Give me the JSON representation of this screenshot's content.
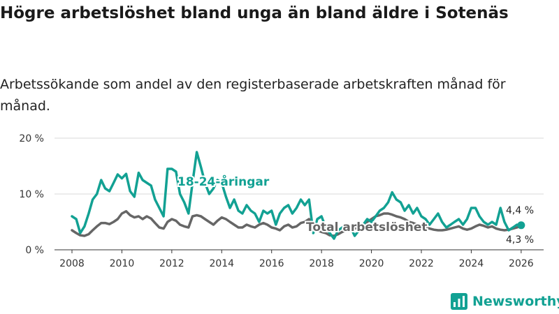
{
  "header": {
    "title": "Högre arbetslöshet bland unga än bland äldre i Sotenäs",
    "subtitle": "Arbetssökande som andel av den registerbaserade arbetskraften månad för månad."
  },
  "colors": {
    "youth": "#12a193",
    "total": "#666666",
    "grid": "#d9d9d9",
    "axis": "#333333"
  },
  "brand": {
    "name": "Newsworthy",
    "icon": "bar-chart-icon"
  },
  "chart_data": {
    "type": "line",
    "title": "Högre arbetslöshet bland unga än bland äldre i Sotenäs",
    "subtitle": "Arbetssökande som andel av den registerbaserade arbetskraften månad för månad.",
    "xlabel": "",
    "ylabel": "",
    "xlim": [
      2007.3,
      2026.9
    ],
    "ylim": [
      0,
      20
    ],
    "grid": true,
    "y_ticks": [
      0,
      10,
      20
    ],
    "y_tick_labels": [
      "0 %",
      "10 %",
      "20 %"
    ],
    "x_ticks": [
      2008,
      2010,
      2012,
      2014,
      2016,
      2018,
      2020,
      2022,
      2024,
      2026
    ],
    "x_tick_labels": [
      "2008",
      "2010",
      "2012",
      "2014",
      "2016",
      "2018",
      "2020",
      "2022",
      "2024",
      "2026"
    ],
    "series": [
      {
        "name": "18-24-åringar",
        "label": "18-24-åringar",
        "end_label": "4,4 %",
        "color": "#12a193",
        "x": [
          2008.0,
          2008.17,
          2008.33,
          2008.5,
          2008.67,
          2008.83,
          2009.0,
          2009.17,
          2009.33,
          2009.5,
          2009.67,
          2009.83,
          2010.0,
          2010.17,
          2010.33,
          2010.5,
          2010.67,
          2010.83,
          2011.0,
          2011.17,
          2011.33,
          2011.5,
          2011.67,
          2011.83,
          2012.0,
          2012.17,
          2012.33,
          2012.5,
          2012.67,
          2012.83,
          2013.0,
          2013.17,
          2013.33,
          2013.5,
          2013.67,
          2013.83,
          2014.0,
          2014.17,
          2014.33,
          2014.5,
          2014.67,
          2014.83,
          2015.0,
          2015.17,
          2015.33,
          2015.5,
          2015.67,
          2015.83,
          2016.0,
          2016.17,
          2016.33,
          2016.5,
          2016.67,
          2016.83,
          2017.0,
          2017.17,
          2017.33,
          2017.5,
          2017.67,
          2017.83,
          2018.0,
          2018.17,
          2018.33,
          2018.5,
          2018.67,
          2018.83,
          2019.0,
          2019.17,
          2019.33,
          2019.5,
          2019.67,
          2019.83,
          2020.0,
          2020.17,
          2020.33,
          2020.5,
          2020.67,
          2020.83,
          2021.0,
          2021.17,
          2021.33,
          2021.5,
          2021.67,
          2021.83,
          2022.0,
          2022.17,
          2022.33,
          2022.5,
          2022.67,
          2022.83,
          2023.0,
          2023.17,
          2023.33,
          2023.5,
          2023.67,
          2023.83,
          2024.0,
          2024.17,
          2024.33,
          2024.5,
          2024.67,
          2024.83,
          2025.0,
          2025.17,
          2025.33,
          2025.5,
          2025.67,
          2025.83,
          2026.0
        ],
        "values": [
          6.0,
          5.5,
          3.0,
          4.2,
          6.5,
          9.0,
          10.0,
          12.5,
          11.0,
          10.5,
          12.0,
          13.5,
          12.8,
          13.6,
          10.5,
          9.5,
          13.8,
          12.5,
          12.0,
          11.5,
          9.0,
          7.5,
          6.0,
          14.5,
          14.5,
          14.0,
          10.0,
          8.5,
          6.5,
          12.0,
          17.5,
          14.8,
          12.0,
          10.0,
          11.0,
          12.5,
          12.0,
          9.5,
          7.5,
          9.0,
          7.0,
          6.5,
          8.0,
          7.0,
          6.5,
          5.0,
          7.0,
          6.5,
          7.0,
          4.5,
          6.5,
          7.5,
          8.0,
          6.5,
          7.5,
          9.0,
          8.0,
          9.0,
          3.0,
          5.5,
          6.0,
          4.0,
          3.0,
          2.0,
          3.5,
          4.0,
          3.5,
          4.0,
          2.5,
          3.5,
          4.5,
          5.5,
          5.0,
          6.0,
          7.0,
          7.5,
          8.5,
          10.3,
          9.0,
          8.5,
          7.0,
          8.0,
          6.5,
          7.5,
          6.0,
          5.5,
          4.5,
          5.5,
          6.5,
          5.0,
          4.0,
          4.5,
          5.0,
          5.5,
          4.5,
          5.5,
          7.5,
          7.5,
          6.0,
          5.0,
          4.5,
          5.0,
          4.5,
          7.5,
          5.0,
          3.5,
          4.0,
          4.5,
          4.4
        ]
      },
      {
        "name": "Total arbetslöshet",
        "label": "Total arbetslöshet",
        "end_label": "4,3 %",
        "color": "#666666",
        "x": [
          2008.0,
          2008.17,
          2008.33,
          2008.5,
          2008.67,
          2008.83,
          2009.0,
          2009.17,
          2009.33,
          2009.5,
          2009.67,
          2009.83,
          2010.0,
          2010.17,
          2010.33,
          2010.5,
          2010.67,
          2010.83,
          2011.0,
          2011.17,
          2011.33,
          2011.5,
          2011.67,
          2011.83,
          2012.0,
          2012.17,
          2012.33,
          2012.5,
          2012.67,
          2012.83,
          2013.0,
          2013.17,
          2013.33,
          2013.5,
          2013.67,
          2013.83,
          2014.0,
          2014.17,
          2014.33,
          2014.5,
          2014.67,
          2014.83,
          2015.0,
          2015.17,
          2015.33,
          2015.5,
          2015.67,
          2015.83,
          2016.0,
          2016.17,
          2016.33,
          2016.5,
          2016.67,
          2016.83,
          2017.0,
          2017.17,
          2017.33,
          2017.5,
          2017.67,
          2017.83,
          2018.0,
          2018.17,
          2018.33,
          2018.5,
          2018.67,
          2018.83,
          2019.0,
          2019.17,
          2019.33,
          2019.5,
          2019.67,
          2019.83,
          2020.0,
          2020.17,
          2020.33,
          2020.5,
          2020.67,
          2020.83,
          2021.0,
          2021.17,
          2021.33,
          2021.5,
          2021.67,
          2021.83,
          2022.0,
          2022.17,
          2022.33,
          2022.5,
          2022.67,
          2022.83,
          2023.0,
          2023.17,
          2023.33,
          2023.5,
          2023.67,
          2023.83,
          2024.0,
          2024.17,
          2024.33,
          2024.5,
          2024.67,
          2024.83,
          2025.0,
          2025.17,
          2025.33,
          2025.5,
          2025.67,
          2025.83,
          2026.0
        ],
        "values": [
          3.5,
          3.0,
          2.6,
          2.5,
          2.8,
          3.5,
          4.2,
          4.8,
          4.8,
          4.6,
          5.0,
          5.5,
          6.5,
          6.9,
          6.2,
          5.8,
          6.0,
          5.5,
          6.0,
          5.6,
          4.8,
          4.0,
          3.8,
          5.0,
          5.5,
          5.2,
          4.5,
          4.2,
          4.0,
          6.0,
          6.2,
          6.0,
          5.5,
          5.0,
          4.5,
          5.2,
          5.8,
          5.5,
          5.0,
          4.5,
          4.0,
          4.0,
          4.5,
          4.2,
          4.0,
          4.5,
          4.8,
          4.5,
          4.0,
          3.8,
          3.5,
          4.2,
          4.5,
          4.0,
          4.2,
          4.8,
          5.0,
          5.5,
          4.0,
          3.5,
          3.2,
          3.0,
          2.6,
          2.5,
          2.8,
          3.2,
          3.5,
          3.8,
          3.8,
          4.0,
          4.5,
          5.0,
          5.5,
          6.0,
          6.2,
          6.5,
          6.5,
          6.3,
          6.0,
          5.8,
          5.5,
          5.0,
          4.8,
          4.5,
          4.2,
          4.0,
          3.8,
          3.6,
          3.5,
          3.5,
          3.6,
          3.8,
          4.0,
          4.2,
          3.8,
          3.6,
          3.8,
          4.2,
          4.5,
          4.3,
          4.0,
          4.2,
          3.8,
          3.6,
          3.5,
          3.6,
          3.8,
          4.0,
          4.3
        ]
      }
    ]
  }
}
